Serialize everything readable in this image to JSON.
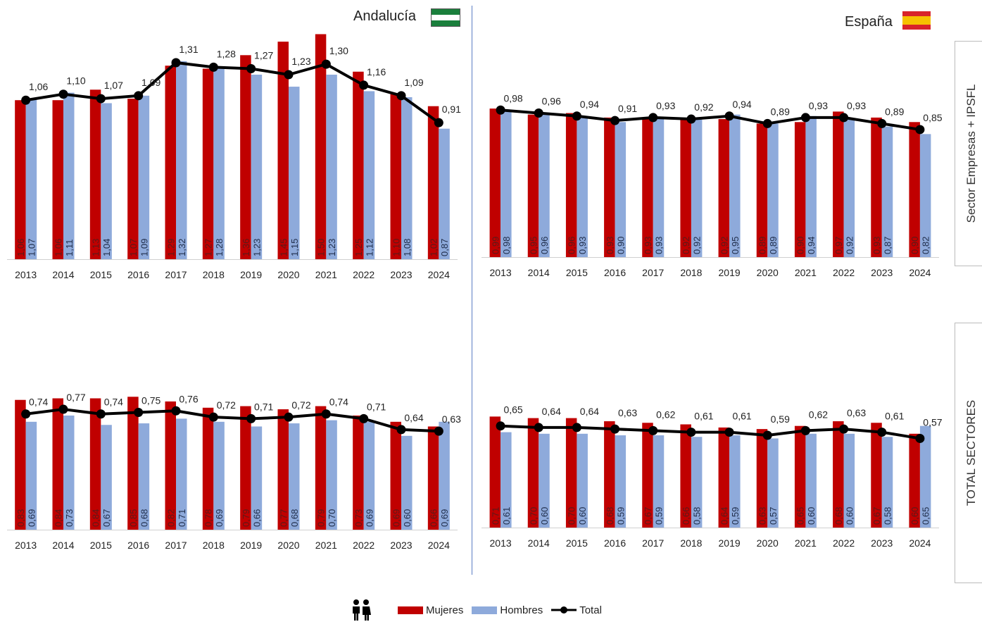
{
  "header": {
    "left_region": "Andalucía",
    "right_region": "España"
  },
  "side_labels": {
    "top": "Sector Empresas + IPSFL",
    "bottom": "TOTAL SECTORES"
  },
  "legend": {
    "mujeres": "Mujeres",
    "hombres": "Hombres",
    "total": "Total"
  },
  "colors": {
    "mujeres": "#c00000",
    "hombres": "#8eaadb",
    "total": "#000000",
    "divider": "#5a7dc4"
  },
  "chart_data": [
    {
      "id": "andalucia-empresas",
      "type": "bar",
      "region": "Andalucía",
      "sector": "Sector Empresas + IPSFL",
      "categories": [
        "2013",
        "2014",
        "2015",
        "2016",
        "2017",
        "2018",
        "2019",
        "2020",
        "2021",
        "2022",
        "2023",
        "2024"
      ],
      "series": [
        {
          "name": "Mujeres",
          "type": "bar",
          "values": [
            1.06,
            1.06,
            1.13,
            1.07,
            1.29,
            1.27,
            1.36,
            1.45,
            1.5,
            1.25,
            1.1,
            1.02
          ]
        },
        {
          "name": "Hombres",
          "type": "bar",
          "values": [
            1.07,
            1.11,
            1.04,
            1.09,
            1.32,
            1.28,
            1.23,
            1.15,
            1.23,
            1.12,
            1.08,
            0.87
          ]
        },
        {
          "name": "Total",
          "type": "line",
          "values": [
            1.06,
            1.1,
            1.07,
            1.09,
            1.31,
            1.28,
            1.27,
            1.23,
            1.3,
            1.16,
            1.09,
            0.91
          ]
        }
      ],
      "ylim": [
        0,
        1.5
      ]
    },
    {
      "id": "espana-empresas",
      "type": "bar",
      "region": "España",
      "sector": "Sector Empresas + IPSFL",
      "categories": [
        "2013",
        "2014",
        "2015",
        "2016",
        "2017",
        "2018",
        "2019",
        "2020",
        "2021",
        "2022",
        "2023",
        "2024"
      ],
      "series": [
        {
          "name": "Mujeres",
          "type": "bar",
          "values": [
            0.99,
            0.95,
            0.96,
            0.93,
            0.93,
            0.92,
            0.92,
            0.89,
            0.9,
            0.97,
            0.93,
            0.9
          ]
        },
        {
          "name": "Hombres",
          "type": "bar",
          "values": [
            0.98,
            0.96,
            0.93,
            0.9,
            0.93,
            0.92,
            0.95,
            0.89,
            0.94,
            0.92,
            0.87,
            0.82
          ]
        },
        {
          "name": "Total",
          "type": "line",
          "values": [
            0.98,
            0.96,
            0.94,
            0.91,
            0.93,
            0.92,
            0.94,
            0.89,
            0.93,
            0.93,
            0.89,
            0.85
          ]
        }
      ],
      "ylim": [
        0,
        1.5
      ]
    },
    {
      "id": "andalucia-total",
      "type": "bar",
      "region": "Andalucía",
      "sector": "TOTAL SECTORES",
      "categories": [
        "2013",
        "2014",
        "2015",
        "2016",
        "2017",
        "2018",
        "2019",
        "2020",
        "2021",
        "2022",
        "2023",
        "2024"
      ],
      "series": [
        {
          "name": "Mujeres",
          "type": "bar",
          "values": [
            0.83,
            0.84,
            0.84,
            0.85,
            0.82,
            0.78,
            0.79,
            0.77,
            0.79,
            0.73,
            0.69,
            0.66
          ]
        },
        {
          "name": "Hombres",
          "type": "bar",
          "values": [
            0.69,
            0.73,
            0.67,
            0.68,
            0.71,
            0.69,
            0.66,
            0.68,
            0.7,
            0.69,
            0.6,
            0.69
          ]
        },
        {
          "name": "Total",
          "type": "line",
          "values": [
            0.74,
            0.77,
            0.74,
            0.75,
            0.76,
            0.72,
            0.71,
            0.72,
            0.74,
            0.71,
            0.64,
            0.63
          ]
        }
      ],
      "ylim": [
        0,
        0.85
      ]
    },
    {
      "id": "espana-total",
      "type": "bar",
      "region": "España",
      "sector": "TOTAL SECTORES",
      "categories": [
        "2013",
        "2014",
        "2015",
        "2016",
        "2017",
        "2018",
        "2019",
        "2020",
        "2021",
        "2022",
        "2023",
        "2024"
      ],
      "series": [
        {
          "name": "Mujeres",
          "type": "bar",
          "values": [
            0.71,
            0.7,
            0.7,
            0.68,
            0.67,
            0.66,
            0.64,
            0.63,
            0.65,
            0.68,
            0.67,
            0.6
          ]
        },
        {
          "name": "Hombres",
          "type": "bar",
          "values": [
            0.61,
            0.6,
            0.6,
            0.59,
            0.59,
            0.58,
            0.59,
            0.57,
            0.6,
            0.6,
            0.58,
            0.65
          ]
        },
        {
          "name": "Total",
          "type": "line",
          "values": [
            0.65,
            0.64,
            0.64,
            0.63,
            0.62,
            0.61,
            0.61,
            0.59,
            0.62,
            0.63,
            0.61,
            0.57
          ]
        }
      ],
      "ylim": [
        0,
        0.85
      ]
    }
  ]
}
